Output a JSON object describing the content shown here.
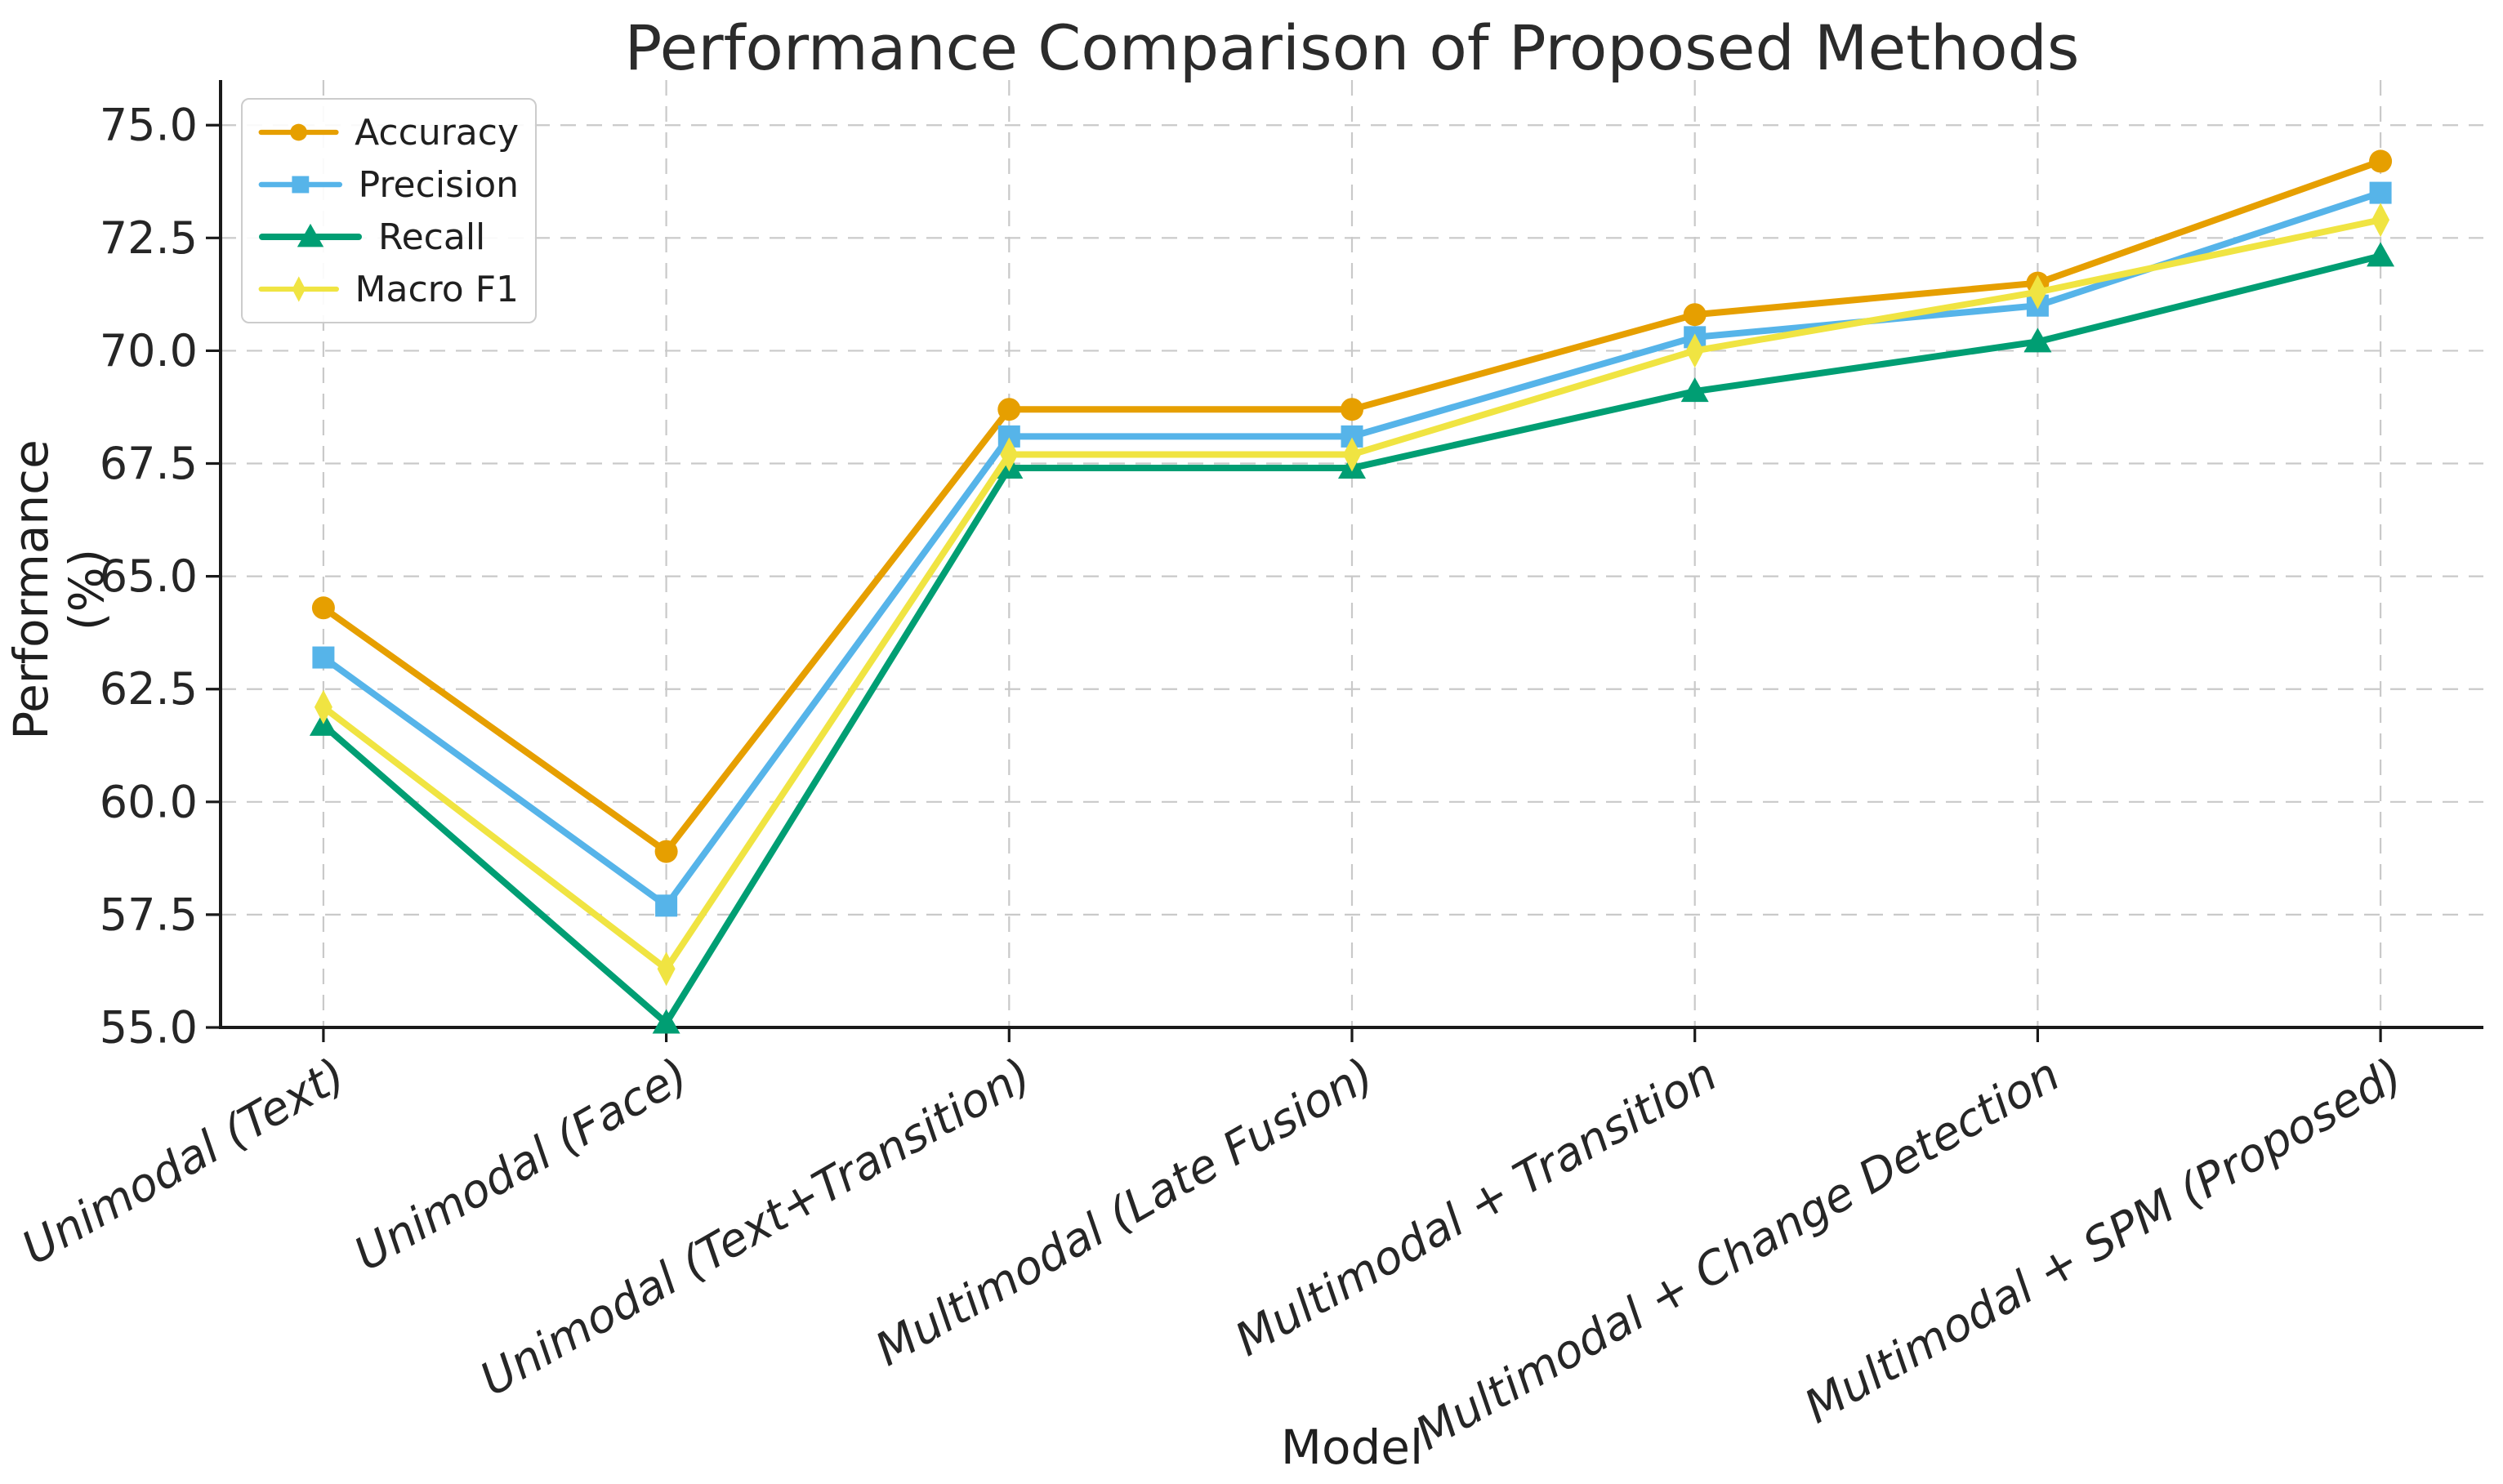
{
  "figure": {
    "title": "Performance Comparison of Proposed Methods",
    "xlabel": "Model",
    "ylabel": "Performance (%)"
  },
  "chart_data": {
    "type": "line",
    "title": "Performance Comparison of Proposed Methods",
    "xlabel": "Model",
    "ylabel": "Performance (%)",
    "categories": [
      "Unimodal (Text)",
      "Unimodal (Face)",
      "Unimodal (Text+Transition)",
      "Multimodal (Late Fusion)",
      "Multimodal + Transition",
      "Multimodal + Change Detection",
      "Multimodal + SPM (Proposed)"
    ],
    "series": [
      {
        "name": "Accuracy",
        "color": "#E69F00",
        "marker": "circle",
        "values": [
          64.3,
          58.9,
          68.7,
          68.7,
          70.8,
          71.5,
          74.2
        ]
      },
      {
        "name": "Precision",
        "color": "#56B4E9",
        "marker": "square",
        "values": [
          63.2,
          57.7,
          68.1,
          68.1,
          70.3,
          71.0,
          73.5
        ]
      },
      {
        "name": "Recall",
        "color": "#009E73",
        "marker": "triangle",
        "values": [
          61.7,
          55.1,
          67.4,
          67.4,
          69.1,
          70.2,
          72.1
        ]
      },
      {
        "name": "Macro F1",
        "color": "#F0E442",
        "marker": "thin-diamond",
        "values": [
          62.1,
          56.3,
          67.7,
          67.7,
          70.0,
          71.3,
          72.9
        ]
      }
    ],
    "ylim": [
      55,
      76
    ],
    "yticks": [
      55.0,
      57.5,
      60.0,
      62.5,
      65.0,
      67.5,
      70.0,
      72.5,
      75.0
    ],
    "ytick_labels": [
      "55.0",
      "57.5",
      "60.0",
      "62.5",
      "65.0",
      "67.5",
      "70.0",
      "72.5",
      "75.0"
    ],
    "grid": true,
    "grid_style": "dashed",
    "legend_position": "upper left",
    "colors": {
      "grid": "#c9c9c9",
      "spine": "#1a1a1a",
      "tick_text": "#262626",
      "background": "#ffffff"
    }
  }
}
